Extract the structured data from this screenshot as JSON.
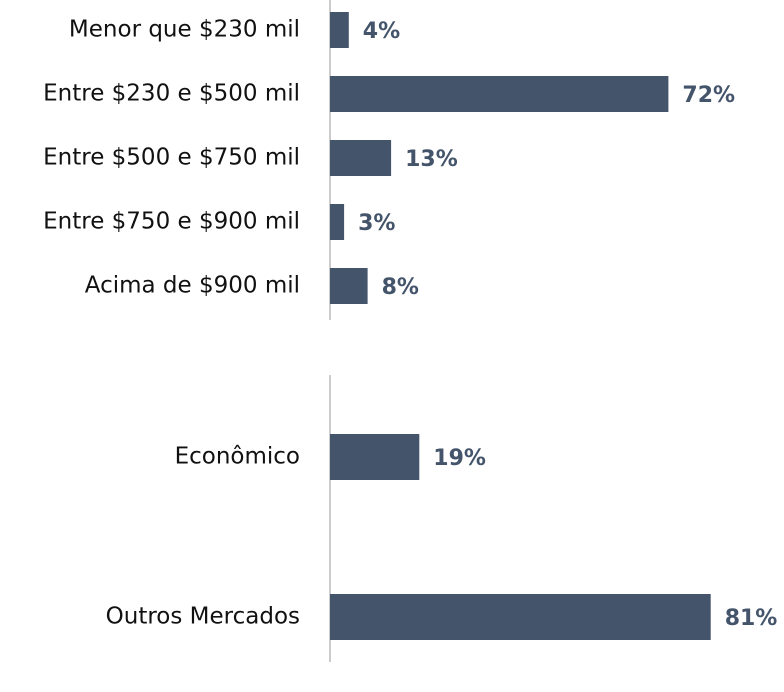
{
  "chart_data": [
    {
      "type": "barh",
      "color": "#44546a",
      "categories": [
        "Menor que $230 mil",
        "Entre $230 e $500 mil",
        "Entre $500 e $750 mil",
        "Entre $750 e $900 mil",
        "Acima de $900 mil"
      ],
      "values": [
        4,
        72,
        13,
        3,
        8
      ],
      "value_labels": [
        "4%",
        "72%",
        "13%",
        "3%",
        "8%"
      ]
    },
    {
      "type": "barh",
      "color": "#44546a",
      "categories": [
        "Econômico",
        "Outros Mercados"
      ],
      "values": [
        19,
        81
      ],
      "value_labels": [
        "19%",
        "81%"
      ]
    }
  ]
}
